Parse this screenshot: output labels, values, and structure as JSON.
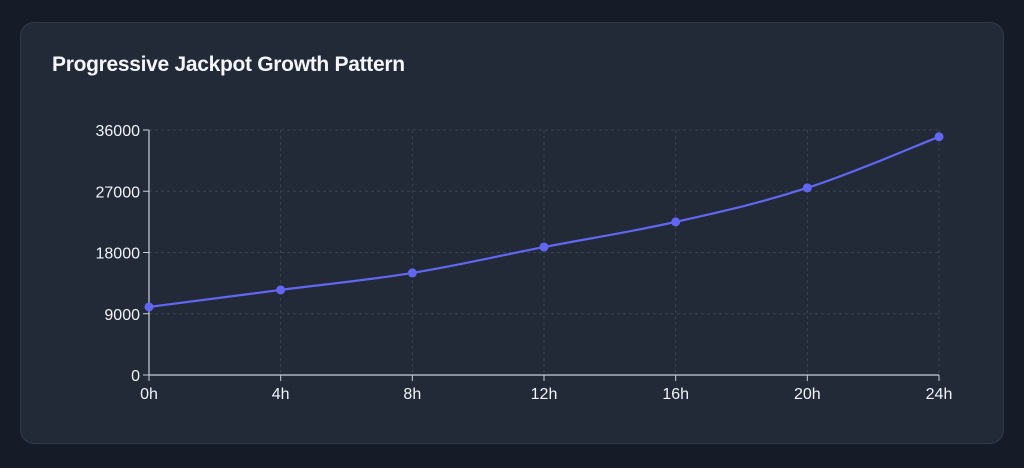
{
  "card": {
    "title": "Progressive Jackpot Growth Pattern"
  },
  "colors": {
    "background": "#151b27",
    "card": "#222937",
    "line": "#6366f1",
    "grid": "#3a4353",
    "axis": "#c9ced8",
    "text": "#f2f4f8"
  },
  "chart_data": {
    "type": "line",
    "title": "Progressive Jackpot Growth Pattern",
    "xlabel": "",
    "ylabel": "",
    "categories": [
      "0h",
      "4h",
      "8h",
      "12h",
      "16h",
      "20h",
      "24h"
    ],
    "series": [
      {
        "values": [
          10000,
          12500,
          15000,
          18800,
          22500,
          27500,
          35000
        ]
      }
    ],
    "ylim": [
      0,
      36000
    ],
    "yticks": [
      "0",
      "9000",
      "18000",
      "27000",
      "36000"
    ],
    "grid": true,
    "grid_style": "dashed",
    "legend": "none",
    "markers": true
  }
}
